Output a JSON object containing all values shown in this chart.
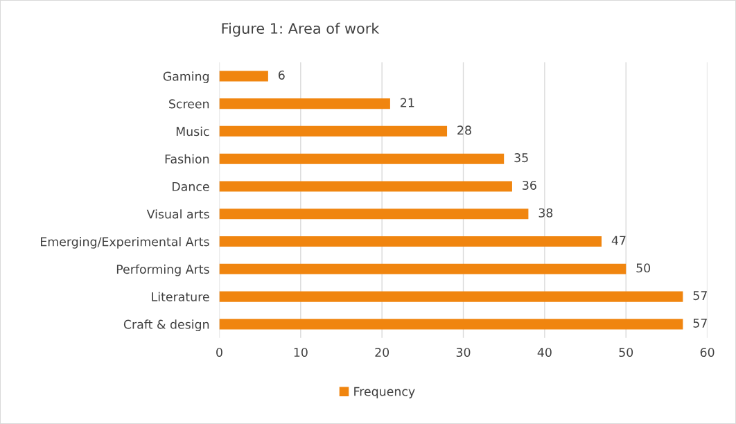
{
  "chart_data": {
    "type": "bar",
    "orientation": "horizontal",
    "title": "Figure 1: Area of work",
    "categories": [
      "Gaming",
      "Screen",
      "Music",
      "Fashion",
      "Dance",
      "Visual arts",
      "Emerging/Experimental Arts",
      "Performing Arts",
      "Literature",
      "Craft & design"
    ],
    "series": [
      {
        "name": "Frequency",
        "color": "#f0850f",
        "values": [
          6,
          21,
          28,
          35,
          36,
          38,
          47,
          50,
          57,
          57
        ]
      }
    ],
    "xlim": [
      0,
      60
    ],
    "xticks": [
      0,
      10,
      20,
      30,
      40,
      50,
      60
    ],
    "grid": "x",
    "legend": "bottom",
    "data_labels": true
  }
}
